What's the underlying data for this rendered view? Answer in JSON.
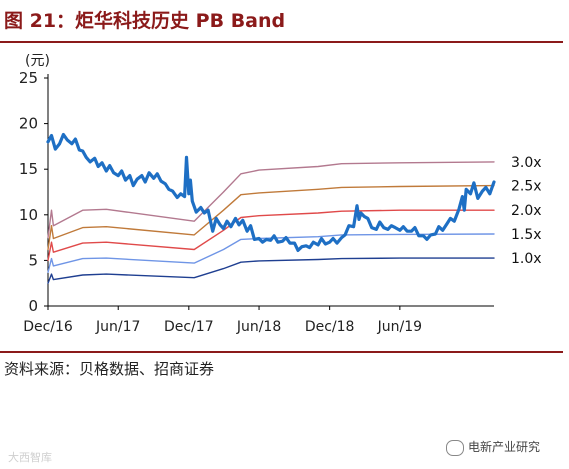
{
  "header": {
    "title": "图 21：炬华科技历史 PB Band"
  },
  "footer": {
    "source": "资料来源：贝格数据、招商证券"
  },
  "watermarks": {
    "left": "大西智库",
    "right": "电新产业研究"
  },
  "chart_data": {
    "type": "line",
    "title": "",
    "unit_label": "(元)",
    "ylim": [
      0,
      25
    ],
    "yticks": [
      0,
      5,
      10,
      15,
      20,
      25
    ],
    "x_range": [
      "2016-12-01",
      "2020-01-31"
    ],
    "xticks": [
      "Dec/16",
      "Jun/17",
      "Dec/17",
      "Jun/18",
      "Dec/18",
      "Jun/19"
    ],
    "xtick_dates": [
      "2016-12-01",
      "2017-06-01",
      "2017-12-01",
      "2018-06-01",
      "2018-12-01",
      "2019-06-01"
    ],
    "grid": false,
    "colors": {
      "price": "#1e6fc4",
      "band_3_0x": "#b3798f",
      "band_2_5x": "#c07a3a",
      "band_2_0x": "#e04a4a",
      "band_1_5x": "#6f95e6",
      "band_1_0x": "#1f3f91",
      "title": "#8b1a1a"
    },
    "series": [
      {
        "name": "3.0x",
        "color_key": "band_3_0x",
        "points": [
          [
            "2016-12-01",
            7.5
          ],
          [
            "2016-12-10",
            10.5
          ],
          [
            "2016-12-15",
            8.8
          ],
          [
            "2017-03-01",
            10.5
          ],
          [
            "2017-05-01",
            10.6
          ],
          [
            "2017-12-15",
            9.3
          ],
          [
            "2018-03-01",
            12.5
          ],
          [
            "2018-04-15",
            14.5
          ],
          [
            "2018-06-01",
            14.9
          ],
          [
            "2018-11-01",
            15.3
          ],
          [
            "2019-01-01",
            15.6
          ],
          [
            "2019-06-01",
            15.7
          ],
          [
            "2020-01-31",
            15.8
          ]
        ]
      },
      {
        "name": "2.5x",
        "color_key": "band_2_5x",
        "points": [
          [
            "2016-12-01",
            6.2
          ],
          [
            "2016-12-10",
            8.8
          ],
          [
            "2016-12-15",
            7.4
          ],
          [
            "2017-03-01",
            8.6
          ],
          [
            "2017-05-01",
            8.7
          ],
          [
            "2017-12-15",
            7.8
          ],
          [
            "2018-03-01",
            10.5
          ],
          [
            "2018-04-15",
            12.2
          ],
          [
            "2018-06-01",
            12.4
          ],
          [
            "2018-11-01",
            12.8
          ],
          [
            "2019-01-01",
            13.0
          ],
          [
            "2019-06-01",
            13.1
          ],
          [
            "2020-01-31",
            13.2
          ]
        ]
      },
      {
        "name": "2.0x",
        "color_key": "band_2_0x",
        "points": [
          [
            "2016-12-01",
            5.0
          ],
          [
            "2016-12-10",
            7.0
          ],
          [
            "2016-12-15",
            5.9
          ],
          [
            "2017-03-01",
            6.9
          ],
          [
            "2017-05-01",
            7.0
          ],
          [
            "2017-12-15",
            6.2
          ],
          [
            "2018-03-01",
            8.3
          ],
          [
            "2018-04-15",
            9.7
          ],
          [
            "2018-06-01",
            9.9
          ],
          [
            "2018-11-01",
            10.2
          ],
          [
            "2019-01-01",
            10.4
          ],
          [
            "2019-06-01",
            10.5
          ],
          [
            "2020-01-31",
            10.5
          ]
        ]
      },
      {
        "name": "1.5x",
        "color_key": "band_1_5x",
        "points": [
          [
            "2016-12-01",
            3.7
          ],
          [
            "2016-12-10",
            5.2
          ],
          [
            "2016-12-15",
            4.4
          ],
          [
            "2017-03-01",
            5.2
          ],
          [
            "2017-05-01",
            5.25
          ],
          [
            "2017-12-15",
            4.7
          ],
          [
            "2018-03-01",
            6.2
          ],
          [
            "2018-04-15",
            7.3
          ],
          [
            "2018-06-01",
            7.4
          ],
          [
            "2018-11-01",
            7.6
          ],
          [
            "2019-01-01",
            7.8
          ],
          [
            "2019-06-01",
            7.85
          ],
          [
            "2020-01-31",
            7.9
          ]
        ]
      },
      {
        "name": "1.0x",
        "color_key": "band_1_0x",
        "points": [
          [
            "2016-12-01",
            2.5
          ],
          [
            "2016-12-10",
            3.5
          ],
          [
            "2016-12-15",
            2.9
          ],
          [
            "2017-03-01",
            3.4
          ],
          [
            "2017-05-01",
            3.5
          ],
          [
            "2017-12-15",
            3.1
          ],
          [
            "2018-03-01",
            4.1
          ],
          [
            "2018-04-15",
            4.8
          ],
          [
            "2018-06-01",
            4.95
          ],
          [
            "2018-11-01",
            5.1
          ],
          [
            "2019-01-01",
            5.2
          ],
          [
            "2019-06-01",
            5.25
          ],
          [
            "2020-01-31",
            5.25
          ]
        ]
      },
      {
        "name": "",
        "color_key": "price",
        "points": [
          [
            "2016-12-01",
            18.0
          ],
          [
            "2016-12-10",
            18.7
          ],
          [
            "2016-12-20",
            17.2
          ],
          [
            "2016-12-31",
            17.8
          ],
          [
            "2017-01-10",
            18.8
          ],
          [
            "2017-01-20",
            18.2
          ],
          [
            "2017-02-01",
            17.8
          ],
          [
            "2017-02-10",
            18.3
          ],
          [
            "2017-02-20",
            17.1
          ],
          [
            "2017-03-01",
            17.0
          ],
          [
            "2017-03-10",
            16.3
          ],
          [
            "2017-03-20",
            15.8
          ],
          [
            "2017-04-01",
            16.2
          ],
          [
            "2017-04-10",
            15.3
          ],
          [
            "2017-04-20",
            15.7
          ],
          [
            "2017-05-01",
            14.8
          ],
          [
            "2017-05-10",
            15.4
          ],
          [
            "2017-05-20",
            14.6
          ],
          [
            "2017-06-01",
            14.3
          ],
          [
            "2017-06-10",
            14.8
          ],
          [
            "2017-06-20",
            13.8
          ],
          [
            "2017-07-01",
            14.3
          ],
          [
            "2017-07-10",
            13.2
          ],
          [
            "2017-07-20",
            13.9
          ],
          [
            "2017-08-01",
            14.3
          ],
          [
            "2017-08-10",
            13.6
          ],
          [
            "2017-08-20",
            14.6
          ],
          [
            "2017-09-01",
            14.0
          ],
          [
            "2017-09-10",
            14.5
          ],
          [
            "2017-09-20",
            13.7
          ],
          [
            "2017-10-01",
            13.4
          ],
          [
            "2017-10-10",
            12.8
          ],
          [
            "2017-10-20",
            12.6
          ],
          [
            "2017-11-01",
            11.9
          ],
          [
            "2017-11-10",
            12.3
          ],
          [
            "2017-11-20",
            12.0
          ],
          [
            "2017-11-25",
            16.3
          ],
          [
            "2017-12-01",
            12.3
          ],
          [
            "2017-12-05",
            13.8
          ],
          [
            "2017-12-10",
            11.5
          ],
          [
            "2017-12-20",
            10.3
          ],
          [
            "2018-01-01",
            10.8
          ],
          [
            "2018-01-10",
            10.2
          ],
          [
            "2018-01-20",
            10.5
          ],
          [
            "2018-02-01",
            8.2
          ],
          [
            "2018-02-10",
            9.6
          ],
          [
            "2018-02-20",
            8.9
          ],
          [
            "2018-03-01",
            8.5
          ],
          [
            "2018-03-10",
            9.3
          ],
          [
            "2018-03-20",
            8.7
          ],
          [
            "2018-04-01",
            9.6
          ],
          [
            "2018-04-10",
            8.9
          ],
          [
            "2018-04-20",
            9.4
          ],
          [
            "2018-05-01",
            8.2
          ],
          [
            "2018-05-10",
            8.8
          ],
          [
            "2018-05-20",
            7.3
          ],
          [
            "2018-06-01",
            7.4
          ],
          [
            "2018-06-10",
            7.0
          ],
          [
            "2018-06-20",
            7.3
          ],
          [
            "2018-07-01",
            7.2
          ],
          [
            "2018-07-10",
            7.7
          ],
          [
            "2018-07-20",
            7.0
          ],
          [
            "2018-08-01",
            7.1
          ],
          [
            "2018-08-10",
            7.5
          ],
          [
            "2018-08-20",
            6.9
          ],
          [
            "2018-09-01",
            6.9
          ],
          [
            "2018-09-10",
            6.1
          ],
          [
            "2018-09-20",
            6.5
          ],
          [
            "2018-10-01",
            6.6
          ],
          [
            "2018-10-10",
            6.4
          ],
          [
            "2018-10-20",
            7.0
          ],
          [
            "2018-11-01",
            6.7
          ],
          [
            "2018-11-10",
            7.4
          ],
          [
            "2018-11-20",
            6.8
          ],
          [
            "2018-12-01",
            7.0
          ],
          [
            "2018-12-10",
            7.4
          ],
          [
            "2018-12-20",
            6.9
          ],
          [
            "2019-01-01",
            7.5
          ],
          [
            "2019-01-10",
            7.8
          ],
          [
            "2019-01-20",
            8.8
          ],
          [
            "2019-02-01",
            8.7
          ],
          [
            "2019-02-10",
            11.0
          ],
          [
            "2019-02-15",
            9.5
          ],
          [
            "2019-02-20",
            10.2
          ],
          [
            "2019-03-01",
            9.8
          ],
          [
            "2019-03-10",
            9.6
          ],
          [
            "2019-03-20",
            8.6
          ],
          [
            "2019-04-01",
            8.4
          ],
          [
            "2019-04-10",
            9.2
          ],
          [
            "2019-04-20",
            8.6
          ],
          [
            "2019-05-01",
            8.4
          ],
          [
            "2019-05-10",
            8.8
          ],
          [
            "2019-05-20",
            8.6
          ],
          [
            "2019-06-01",
            8.3
          ],
          [
            "2019-06-10",
            8.7
          ],
          [
            "2019-06-20",
            8.2
          ],
          [
            "2019-07-01",
            8.2
          ],
          [
            "2019-07-10",
            8.6
          ],
          [
            "2019-07-20",
            7.7
          ],
          [
            "2019-08-01",
            7.7
          ],
          [
            "2019-08-10",
            7.3
          ],
          [
            "2019-08-20",
            7.8
          ],
          [
            "2019-09-01",
            7.9
          ],
          [
            "2019-09-10",
            8.7
          ],
          [
            "2019-09-20",
            8.3
          ],
          [
            "2019-10-01",
            9.0
          ],
          [
            "2019-10-10",
            9.6
          ],
          [
            "2019-10-20",
            9.3
          ],
          [
            "2019-11-01",
            10.6
          ],
          [
            "2019-11-10",
            12.0
          ],
          [
            "2019-11-15",
            10.5
          ],
          [
            "2019-11-20",
            12.8
          ],
          [
            "2019-12-01",
            12.3
          ],
          [
            "2019-12-10",
            13.5
          ],
          [
            "2019-12-20",
            11.8
          ],
          [
            "2020-01-01",
            12.6
          ],
          [
            "2020-01-10",
            13.0
          ],
          [
            "2020-01-20",
            12.3
          ],
          [
            "2020-01-31",
            13.6
          ]
        ]
      }
    ]
  }
}
